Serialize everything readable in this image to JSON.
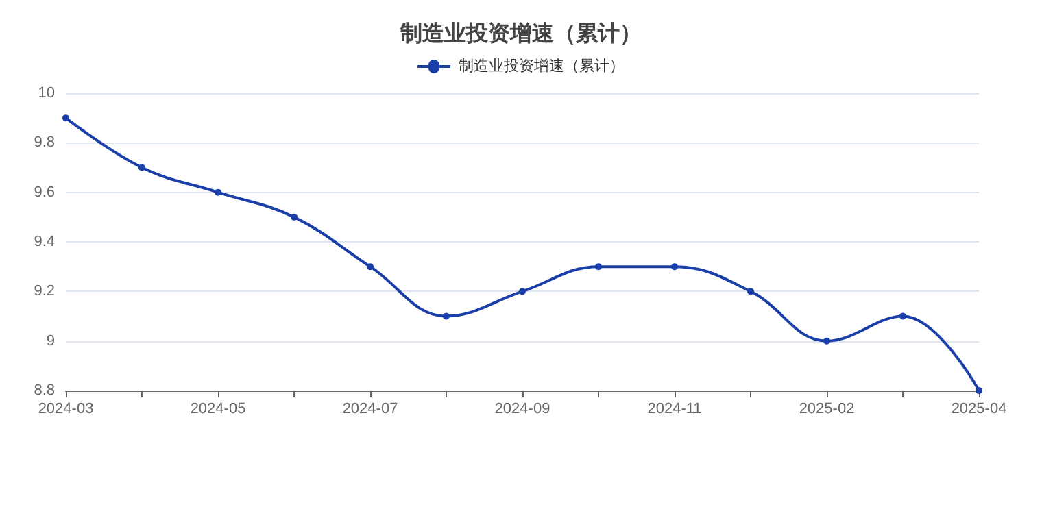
{
  "chart_data": {
    "type": "line",
    "title": "制造业投资增速（累计）",
    "categories": [
      "2024-03",
      null,
      "2024-05",
      null,
      "2024-07",
      null,
      "2024-09",
      null,
      "2024-11",
      null,
      "2025-02",
      null,
      "2025-04"
    ],
    "series": [
      {
        "name": "制造业投资增速（累计）",
        "color": "#1a3fa8",
        "values": [
          9.9,
          9.7,
          9.6,
          9.5,
          9.3,
          9.1,
          9.2,
          9.3,
          9.3,
          9.2,
          9.0,
          9.1,
          8.8
        ]
      }
    ],
    "ylim": [
      8.8,
      10
    ],
    "yticks": [
      8.8,
      9,
      9.2,
      9.4,
      9.6,
      9.8,
      10
    ],
    "grid": "y",
    "legend": "top",
    "marker": "circle",
    "line_style": "solid"
  }
}
